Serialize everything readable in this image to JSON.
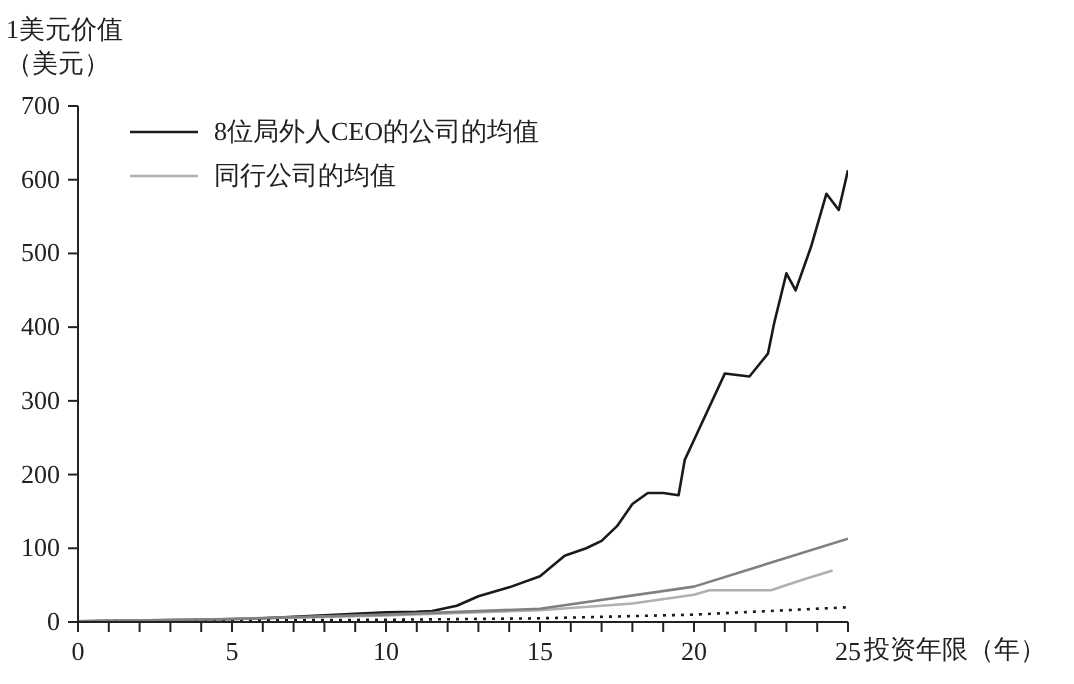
{
  "chart_data": {
    "type": "line",
    "ylabel": "1美元价值（美元）",
    "xlabel": "投资年限（年）",
    "xlim": [
      0,
      25
    ],
    "xticks": [
      0,
      {
        "value": 1,
        "label": null
      },
      {
        "value": 2,
        "label": null
      },
      {
        "value": 3,
        "label": null
      },
      {
        "value": 4,
        "label": null
      },
      5,
      {
        "value": 6,
        "label": null
      },
      {
        "value": 7,
        "label": null
      },
      {
        "value": 8,
        "label": null
      },
      {
        "value": 9,
        "label": null
      },
      10,
      {
        "value": 11,
        "label": null
      },
      {
        "value": 12,
        "label": null
      },
      {
        "value": 13,
        "label": null
      },
      {
        "value": 14,
        "label": null
      },
      15,
      {
        "value": 16,
        "label": null
      },
      {
        "value": 17,
        "label": null
      },
      {
        "value": 18,
        "label": null
      },
      {
        "value": 19,
        "label": null
      },
      20,
      {
        "value": 21,
        "label": null
      },
      {
        "value": 22,
        "label": null
      },
      {
        "value": 23,
        "label": null
      },
      {
        "value": 24,
        "label": null
      },
      25
    ],
    "ylim": [
      0,
      700
    ],
    "yticks": [
      0,
      100,
      200,
      300,
      400,
      500,
      600,
      700
    ],
    "grid": false,
    "legend": "top left",
    "marker": "none",
    "series": [
      {
        "name": "8位局外人CEO的公司的均值",
        "color": "#1a1a1a",
        "line_style": "solid",
        "x": [
          0,
          2,
          4,
          6,
          8,
          10,
          11,
          11.5,
          12.3,
          13,
          14,
          15,
          15.8,
          16.5,
          17,
          17.5,
          18,
          18.5,
          19,
          19.5,
          19.7,
          20,
          21,
          21.8,
          22.4,
          22.6,
          23,
          23.3,
          23.8,
          24.3,
          24.7,
          25
        ],
        "values": [
          1,
          2,
          3,
          5,
          9,
          13,
          14,
          15,
          22,
          35,
          47,
          62,
          90,
          100,
          110,
          130,
          160,
          175,
          175,
          172,
          220,
          247,
          337,
          333,
          364,
          405,
          473,
          450,
          509,
          581,
          559,
          613
        ]
      },
      {
        "name": "同行公司的均值",
        "color": "#b0b0b0",
        "line_style": "solid",
        "x": [
          0,
          5,
          10,
          15,
          18,
          20,
          20.5,
          22.5,
          23.5,
          24.5
        ],
        "values": [
          1,
          4,
          9,
          16,
          25,
          37,
          43,
          43,
          57,
          70
        ]
      },
      {
        "color": "#1a1a1a",
        "line_style": "dotted",
        "x": [
          0,
          5,
          10,
          15,
          20,
          25
        ],
        "values": [
          1,
          2,
          3,
          5,
          10,
          20
        ]
      },
      {
        "color": "#808080",
        "line_style": "solid",
        "x": [
          0,
          5,
          10,
          15,
          20,
          25
        ],
        "values": [
          1,
          4,
          10,
          18,
          48,
          113
        ]
      }
    ]
  }
}
